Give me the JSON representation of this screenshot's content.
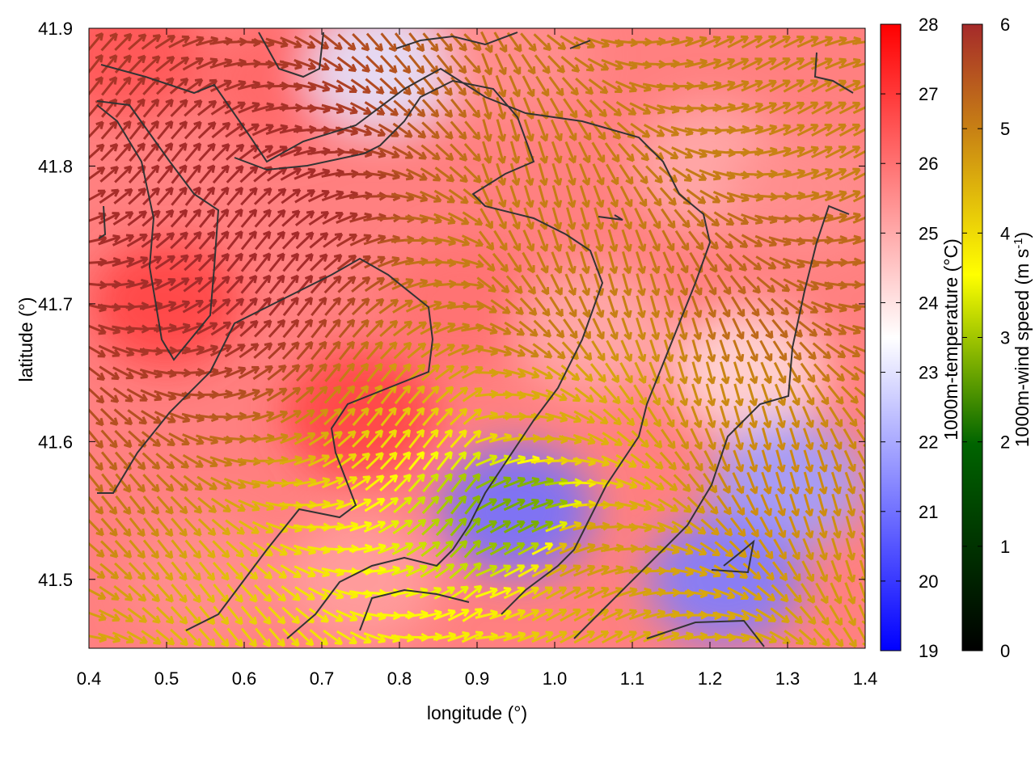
{
  "chart_data": {
    "type": "heatmap",
    "title": "",
    "xlabel": "longitude (°)",
    "ylabel": "latitude (°)",
    "xlim": [
      0.4,
      1.4
    ],
    "ylim": [
      41.45,
      41.9
    ],
    "xticks": [
      "0.4",
      "0.5",
      "0.6",
      "0.7",
      "0.8",
      "0.9",
      "1.0",
      "1.1",
      "1.2",
      "1.3",
      "1.4"
    ],
    "yticks": [
      "41.5",
      "41.6",
      "41.7",
      "41.8",
      "41.9"
    ],
    "ytick_values": [
      41.5,
      41.6,
      41.7,
      41.8,
      41.9
    ],
    "colorbars": [
      {
        "name": "temperature",
        "label": "1000m-temperature (°C)",
        "range": [
          19,
          28
        ],
        "ticks": [
          "19",
          "20",
          "21",
          "22",
          "23",
          "24",
          "25",
          "26",
          "27",
          "28"
        ],
        "colors": [
          "#0000ff",
          "#ffffff",
          "#ff0000"
        ]
      },
      {
        "name": "wind",
        "label_main": "1000m-wind speed (m s",
        "label_sup": "-1",
        "label_end": ")",
        "range": [
          0,
          6
        ],
        "ticks": [
          "0",
          "1",
          "2",
          "3",
          "4",
          "5",
          "6"
        ],
        "colors": [
          "#000000",
          "#006400",
          "#ffff00",
          "#c88214",
          "#a52a2a"
        ]
      }
    ],
    "temperature_field": [
      {
        "lon": 0.45,
        "lat": 41.88,
        "value": 26.5
      },
      {
        "lon": 0.65,
        "lat": 41.86,
        "value": 26.2
      },
      {
        "lon": 0.78,
        "lat": 41.87,
        "value": 23.0
      },
      {
        "lon": 0.95,
        "lat": 41.88,
        "value": 25.5
      },
      {
        "lon": 1.2,
        "lat": 41.8,
        "value": 25.0
      },
      {
        "lon": 1.32,
        "lat": 41.78,
        "value": 25.5
      },
      {
        "lon": 0.5,
        "lat": 41.7,
        "value": 26.8
      },
      {
        "lon": 0.75,
        "lat": 41.62,
        "value": 26.8
      },
      {
        "lon": 0.88,
        "lat": 41.7,
        "value": 26.0
      },
      {
        "lon": 1.05,
        "lat": 41.68,
        "value": 25.0
      },
      {
        "lon": 1.25,
        "lat": 41.65,
        "value": 24.2
      },
      {
        "lon": 0.95,
        "lat": 41.55,
        "value": 21.0
      },
      {
        "lon": 1.3,
        "lat": 41.57,
        "value": 21.8
      },
      {
        "lon": 1.22,
        "lat": 41.5,
        "value": 21.2
      },
      {
        "lon": 0.55,
        "lat": 41.5,
        "value": 25.5
      },
      {
        "lon": 0.75,
        "lat": 41.5,
        "value": 25.2
      }
    ],
    "wind_field": [
      {
        "lon": 0.6,
        "lat": 41.75,
        "speed": 6.0
      },
      {
        "lon": 0.98,
        "lat": 41.7,
        "speed": 4.6
      },
      {
        "lon": 1.0,
        "lat": 41.62,
        "speed": 4.0
      },
      {
        "lon": 0.96,
        "lat": 41.55,
        "speed": 2.2
      },
      {
        "lon": 1.05,
        "lat": 41.52,
        "speed": 4.2
      },
      {
        "lon": 1.32,
        "lat": 41.82,
        "speed": 4.5
      },
      {
        "lon": 1.3,
        "lat": 41.72,
        "speed": 5.0
      },
      {
        "lon": 1.25,
        "lat": 41.6,
        "speed": 4.4
      }
    ]
  }
}
